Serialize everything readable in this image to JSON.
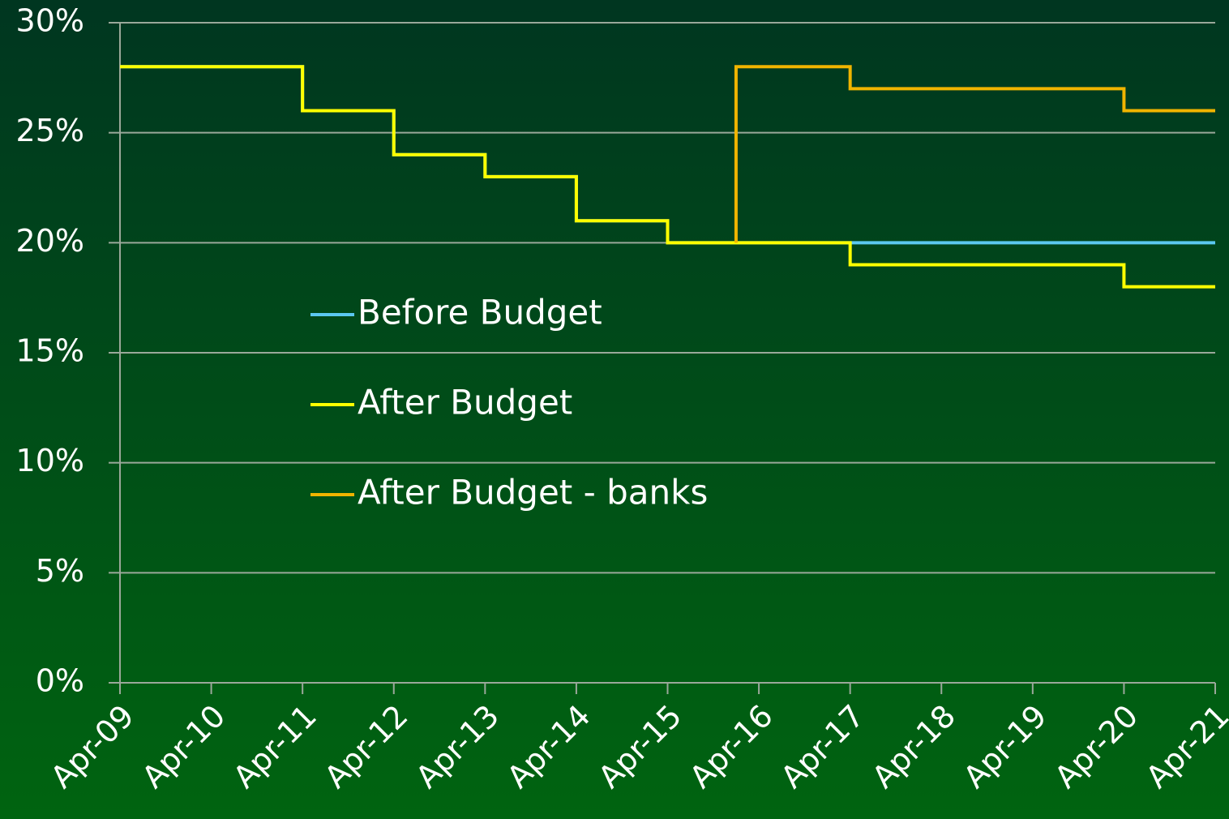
{
  "chart_data": {
    "type": "step",
    "xticks": [
      {
        "value": 2009.25,
        "label": "Apr-09"
      },
      {
        "value": 2010.25,
        "label": "Apr-10"
      },
      {
        "value": 2011.25,
        "label": "Apr-11"
      },
      {
        "value": 2012.25,
        "label": "Apr-12"
      },
      {
        "value": 2013.25,
        "label": "Apr-13"
      },
      {
        "value": 2014.25,
        "label": "Apr-14"
      },
      {
        "value": 2015.25,
        "label": "Apr-15"
      },
      {
        "value": 2016.25,
        "label": "Apr-16"
      },
      {
        "value": 2017.25,
        "label": "Apr-17"
      },
      {
        "value": 2018.25,
        "label": "Apr-18"
      },
      {
        "value": 2019.25,
        "label": "Apr-19"
      },
      {
        "value": 2020.25,
        "label": "Apr-20"
      },
      {
        "value": 2021.25,
        "label": "Apr-21"
      }
    ],
    "xlim": [
      2009.25,
      2021.25
    ],
    "ylim": [
      0,
      30
    ],
    "yticks": [
      {
        "value": 0,
        "label": "0%"
      },
      {
        "value": 5,
        "label": "5%"
      },
      {
        "value": 10,
        "label": "10%"
      },
      {
        "value": 15,
        "label": "15%"
      },
      {
        "value": 20,
        "label": "20%"
      },
      {
        "value": 25,
        "label": "25%"
      },
      {
        "value": 30,
        "label": "30%"
      }
    ],
    "grid": true,
    "series": [
      {
        "name": "Before Budget",
        "color": "#5bc8f0",
        "x": [
          2009.25,
          2011.25,
          2012.25,
          2013.25,
          2014.25,
          2015.25,
          2021.25
        ],
        "values": [
          28,
          26,
          24,
          23,
          21,
          20,
          20
        ]
      },
      {
        "name": "After Budget",
        "color": "#ffff00",
        "x": [
          2009.25,
          2011.25,
          2012.25,
          2013.25,
          2014.25,
          2015.25,
          2017.25,
          2020.25,
          2021.25
        ],
        "values": [
          28,
          26,
          24,
          23,
          21,
          20,
          19,
          18,
          18
        ]
      },
      {
        "name": "After Budget - banks",
        "color": "#f0b400",
        "x": [
          2016.0,
          2016.0,
          2017.25,
          2020.25,
          2021.25
        ],
        "values": [
          20,
          28,
          27,
          26,
          26
        ]
      }
    ]
  }
}
